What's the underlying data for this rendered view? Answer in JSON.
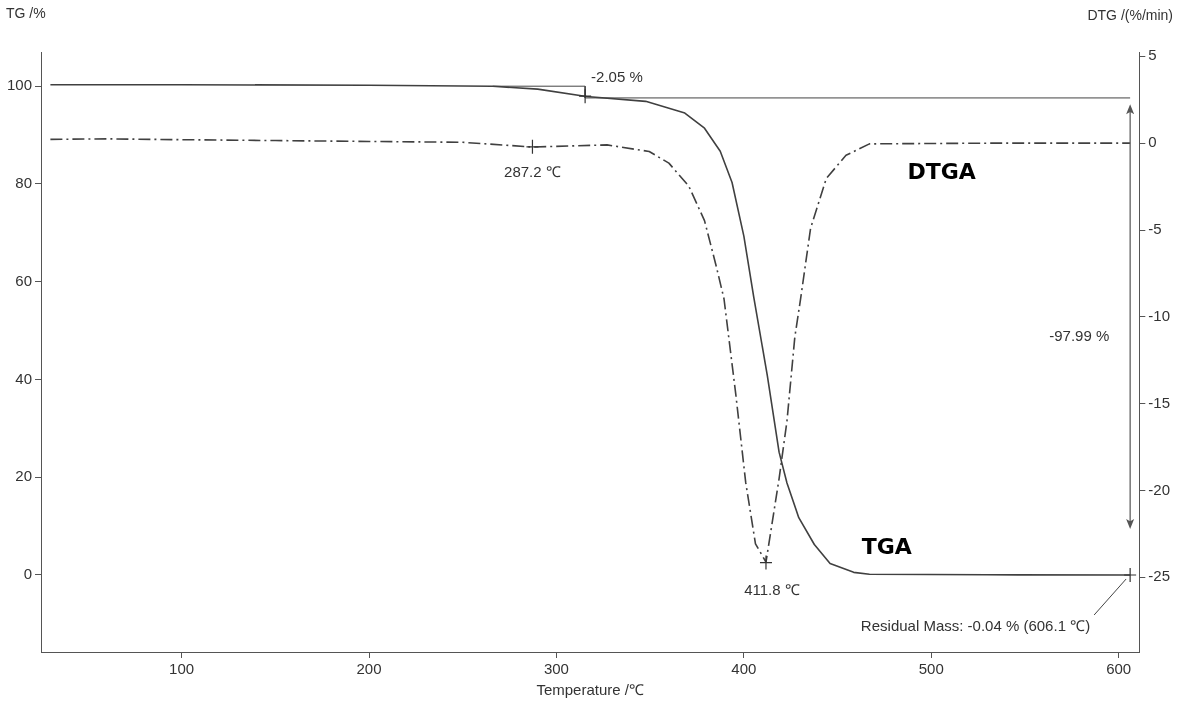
{
  "chart_data": {
    "type": "line",
    "xlabel": "Temperature /℃",
    "ylabel": "TG /%",
    "y2label": "DTG /(%/min)",
    "xlim": [
      25,
      611
    ],
    "xticks": [
      100,
      200,
      300,
      400,
      500,
      600
    ],
    "ylim": [
      -15.8,
      107
    ],
    "yticks": [
      0,
      20,
      40,
      60,
      80,
      100
    ],
    "y2lim": [
      -29.3,
      5.25
    ],
    "y2ticks": [
      -25,
      -20,
      -15,
      -10,
      -5,
      0,
      5
    ],
    "grid": false,
    "legend": false,
    "marker": "none",
    "series": [
      {
        "name": "TGA",
        "color": "#404040",
        "line_style": "solid",
        "x": [
          30,
          100,
          200,
          266,
          290,
          316,
          347.6,
          368.5,
          379,
          387.4,
          393.7,
          400,
          405.3,
          412.5,
          418.8,
          423,
          429.3,
          437.6,
          446,
          458.6,
          467,
          530,
          606.1
        ],
        "values": [
          100.3,
          100.3,
          100.2,
          100,
          99.4,
          97.9,
          96.9,
          94.5,
          91.4,
          86.7,
          80.3,
          69.3,
          56.8,
          40.8,
          25.1,
          18.8,
          11.7,
          6.2,
          2.3,
          0.5,
          0.1,
          0,
          -0.04
        ]
      },
      {
        "name": "DTGA",
        "color": "#404040",
        "line_style": "dashed",
        "axis": "y2",
        "x": [
          30,
          60,
          100,
          150,
          200,
          250,
          287.2,
          327,
          349.5,
          360,
          370.6,
          379,
          385.3,
          389.4,
          395.7,
          401,
          406.2,
          411.8,
          418.8,
          423,
          427.2,
          430.4,
          435.6,
          444,
          454.5,
          467,
          530,
          606.1
        ],
        "values": [
          0.22,
          0.25,
          0.2,
          0.15,
          0.1,
          0.05,
          -0.22,
          -0.1,
          -0.48,
          -1.15,
          -2.47,
          -4.46,
          -7.1,
          -8.96,
          -14.47,
          -19.55,
          -23.07,
          -24.13,
          -19.32,
          -16.0,
          -11.16,
          -8.87,
          -4.9,
          -2.03,
          -0.7,
          -0.04,
          0,
          0
        ]
      },
      {
        "type": "line",
        "color": "#444444",
        "line_style": "solid",
        "x": [
          266,
          315.3,
          315.3,
          606.1
        ],
        "values": [
          100,
          100,
          97.6,
          97.6
        ]
      }
    ],
    "annotations": [
      {
        "text": "-2.05 %",
        "x": 315.3,
        "y": 97.95
      },
      {
        "text": "287.2 ℃",
        "x": 287.2,
        "y": 87.6
      },
      {
        "text": "411.8 ℃",
        "x": 411.8,
        "y": 2.5
      },
      "-97.99 %",
      {
        "text": "Residual Mass: -0.04 % (606.1 ℃)",
        "x": 606.1,
        "y": -0.04
      }
    ]
  }
}
